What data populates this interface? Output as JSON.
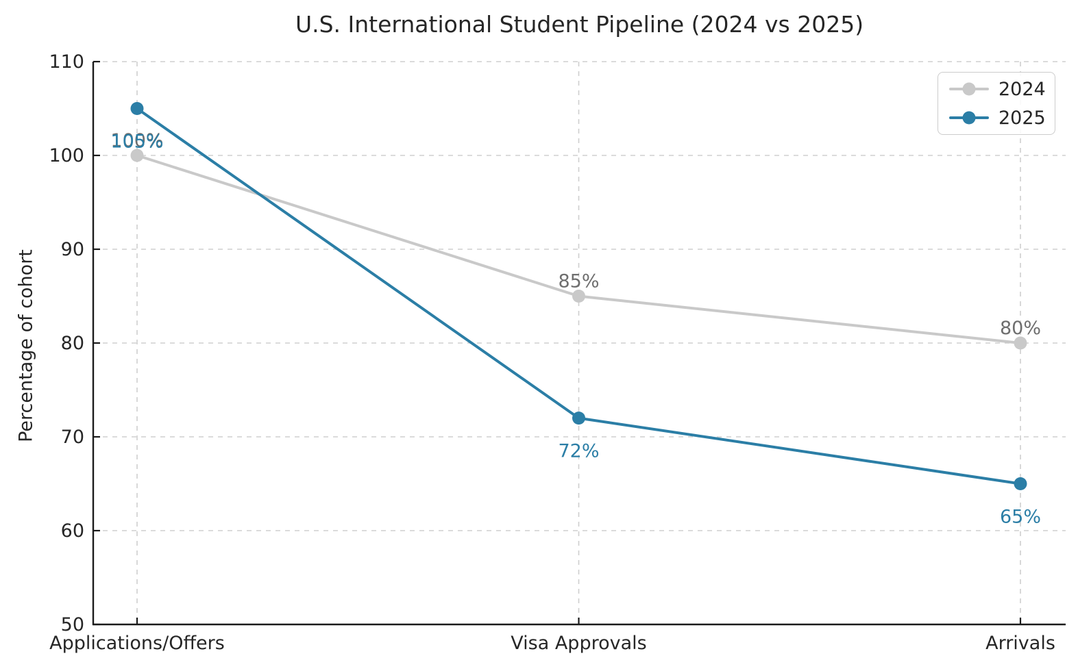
{
  "chart_data": {
    "type": "line",
    "title": "U.S. International Student Pipeline (2024 vs 2025)",
    "xlabel": "",
    "ylabel": "Percentage of cohort",
    "categories": [
      "Applications/Offers",
      "Visa Approvals",
      "Arrivals"
    ],
    "ylim": [
      50,
      110
    ],
    "yticks": [
      50,
      60,
      70,
      80,
      90,
      100,
      110
    ],
    "grid": true,
    "grid_style": "dashed",
    "legend_position": "upper right",
    "series": [
      {
        "name": "2024",
        "color": "#c9c9c9",
        "values": [
          100,
          85,
          80
        ],
        "point_labels": [
          "100%",
          "85%",
          "80%"
        ],
        "label_placement": "above",
        "label_color": "#6e6e6e"
      },
      {
        "name": "2025",
        "color": "#2b7ea6",
        "values": [
          105,
          72,
          65
        ],
        "point_labels": [
          "105%",
          "72%",
          "65%"
        ],
        "label_placement": "below",
        "label_color": "#2b7ea6"
      }
    ]
  },
  "theme": {
    "background": "#ffffff",
    "axis_color": "#1a1a1a",
    "tick_label_color": "#262626",
    "title_color": "#262626",
    "grid_color": "#cfcfcf",
    "annotation_gray": "#6e6e6e",
    "accent_blue": "#2b7ea6",
    "legend_border_color": "#cccccc"
  }
}
